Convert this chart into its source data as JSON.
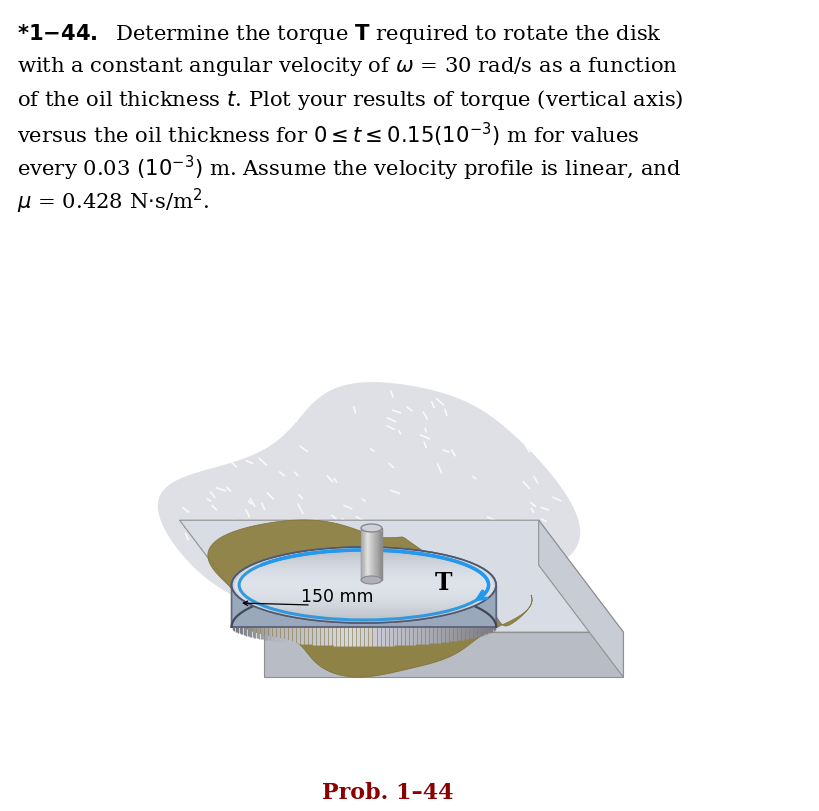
{
  "bg_color": "#ffffff",
  "prob_label": "Prob. 1–44",
  "prob_label_color": "#8b0000",
  "page_width": 8.2,
  "page_height": 8.11,
  "shadow_color": "#c8ccd4",
  "ground_speckle_color": "#b0b4bc",
  "plate_top_color": "#d8dce4",
  "plate_front_color": "#b8bcc4",
  "plate_right_color": "#c8ccd4",
  "plate_edge_color": "#909090",
  "oil_color": "#8a7c3a",
  "oil_edge_color": "#7a6c30",
  "disk_top_color": "#c0c8d8",
  "disk_side_light": "#d0d4dc",
  "disk_side_dark": "#7888a0",
  "disk_edge_color": "#606880",
  "shaft_color": "#c8c8c8",
  "shaft_edge_color": "#909090",
  "arrow_color": "#2299ee",
  "text_color": "#000000"
}
